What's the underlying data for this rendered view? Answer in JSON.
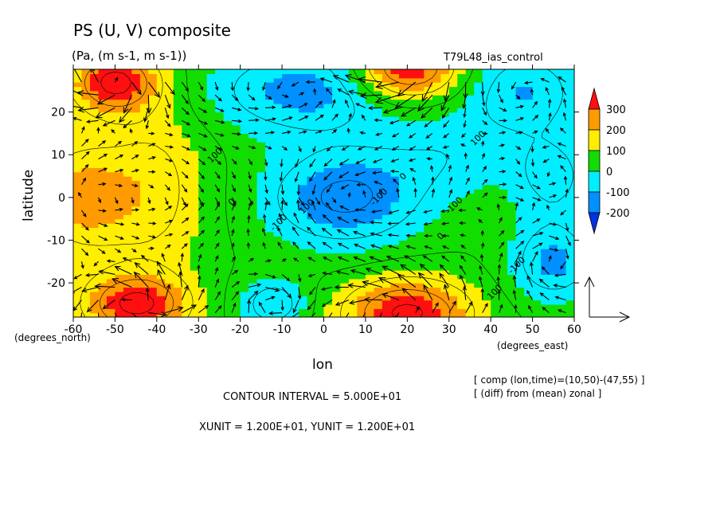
{
  "chart_data": {
    "type": "heatmap",
    "title": "PS (U, V) composite",
    "subtitle": "(Pa, (m s-1, m s-1))",
    "run_label": "T79L48_ias_control",
    "xlabel": "lon",
    "ylabel": "latitude",
    "x_unit_label": "(degrees_east)",
    "y_unit_label": "(degrees_north)",
    "xlim": [
      -60,
      60
    ],
    "ylim": [
      -28,
      30
    ],
    "x_ticks": [
      "-60",
      "-50",
      "-40",
      "-30",
      "-20",
      "-10",
      "0",
      "10",
      "20",
      "30",
      "40",
      "50",
      "60"
    ],
    "y_ticks": [
      "20",
      "10",
      "0",
      "-10",
      "-20"
    ],
    "colorbar": {
      "labels": [
        "300",
        "200",
        "100",
        "0",
        "-100",
        "-200"
      ],
      "colors": [
        "#ff1010",
        "#ff9a00",
        "#ffee00",
        "#12dd00",
        "#00eeff",
        "#0090ff",
        "#0033dd"
      ]
    },
    "contour_labels": [
      "100",
      "0",
      "-100",
      "-100",
      "0",
      "100",
      "-100",
      "0",
      "-100",
      "100",
      "100"
    ],
    "fields": [
      {
        "name": "highs",
        "sign": 1,
        "centers": [
          [
            -50,
            27,
            10,
            7,
            330
          ],
          [
            20,
            30,
            12,
            7,
            330
          ],
          [
            -45,
            -25,
            12,
            7,
            320
          ],
          [
            20,
            -27,
            15,
            8,
            320
          ],
          [
            -58,
            0,
            12,
            13,
            180
          ],
          [
            -40,
            2,
            12,
            20,
            120
          ]
        ]
      },
      {
        "name": "lows",
        "sign": -1,
        "centers": [
          [
            5,
            0,
            18,
            11,
            220
          ],
          [
            -5,
            25,
            22,
            10,
            180
          ],
          [
            48,
            25,
            14,
            10,
            150
          ],
          [
            -12,
            -25,
            8,
            6,
            150
          ],
          [
            55,
            -15,
            10,
            9,
            170
          ],
          [
            30,
            10,
            16,
            10,
            80
          ],
          [
            55,
            5,
            10,
            10,
            120
          ]
        ]
      }
    ],
    "annotations": {
      "comp": "[ comp (lon,time)=(10,50)-(47,55) ]",
      "diff": "[ (diff) from (mean) zonal ]",
      "contour_interval": "CONTOUR INTERVAL = 5.000E+01",
      "units": "XUNIT = 1.200E+01, YUNIT = 1.200E+01"
    }
  }
}
